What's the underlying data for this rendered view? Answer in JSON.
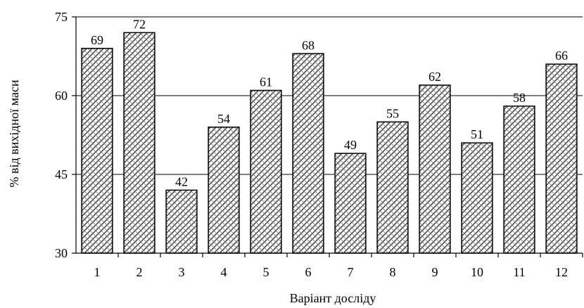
{
  "chart_data": {
    "type": "bar",
    "title": "",
    "xlabel": "Варіант досліду",
    "ylabel": "% від вихідної маси",
    "categories": [
      "1",
      "2",
      "3",
      "4",
      "5",
      "6",
      "7",
      "8",
      "9",
      "10",
      "11",
      "12"
    ],
    "values": [
      69,
      72,
      42,
      54,
      61,
      68,
      49,
      55,
      62,
      51,
      58,
      66
    ],
    "data_labels": [
      "69",
      "72",
      "42",
      "54",
      "61",
      "68",
      "49",
      "55",
      "62",
      "51",
      "58",
      "66"
    ],
    "ylim": [
      30,
      75
    ],
    "yticks": [
      30,
      45,
      60,
      75
    ],
    "ytick_labels": [
      "30",
      "45",
      "60",
      "75"
    ],
    "grid": "horizontal",
    "legend": "none",
    "bar_pattern": "woven-crosshatch",
    "bar_color": "#ffffff",
    "pattern_color": "#555555",
    "axis_color": "#000000"
  }
}
